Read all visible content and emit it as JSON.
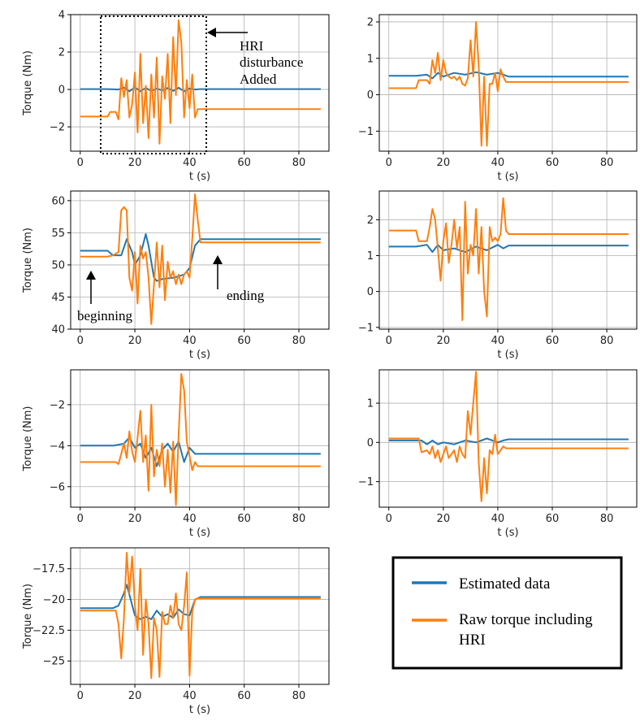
{
  "chart_data": [
    {
      "type": "line",
      "id": "p1",
      "xlabel": "t (s)",
      "ylabel": "Torque (Nm)",
      "xlim": [
        -3.5,
        91
      ],
      "ylim": [
        -3.3,
        4.0
      ],
      "xticks": [
        0,
        20,
        40,
        60,
        80
      ],
      "yticks": [
        -2,
        0,
        2,
        4
      ],
      "series": [
        {
          "name": "Estimated data",
          "color": "#1f77b4",
          "x": [
            0,
            5,
            10,
            14,
            16,
            18,
            20,
            22,
            24,
            26,
            28,
            30,
            32,
            34,
            36,
            38,
            40,
            42,
            44,
            88
          ],
          "y": [
            0.02,
            0.02,
            0.02,
            0.0,
            0.1,
            -0.1,
            0.12,
            -0.1,
            0.08,
            -0.08,
            0.05,
            -0.05,
            0.08,
            -0.08,
            0.1,
            -0.1,
            0.05,
            0.0,
            0.02,
            0.02
          ]
        },
        {
          "name": "Raw torque including HRI",
          "color": "#ff7f0e",
          "x": [
            0,
            10,
            11,
            13,
            14,
            15,
            16,
            17,
            18,
            19,
            20,
            21,
            22,
            23,
            24,
            25,
            26,
            27,
            28,
            29,
            30,
            31,
            32,
            33,
            34,
            35,
            36,
            37,
            38,
            39,
            40,
            41,
            42,
            43,
            44,
            88
          ],
          "y": [
            -1.45,
            -1.45,
            -1.2,
            -1.2,
            -1.6,
            0.6,
            -0.4,
            0.5,
            -1.5,
            -0.8,
            0.9,
            -2.3,
            1.9,
            -1.8,
            0.2,
            -2.6,
            0.8,
            -1.5,
            1.7,
            -2.9,
            0.7,
            -0.5,
            1.9,
            -1.8,
            2.8,
            -0.3,
            3.7,
            2.5,
            -1.5,
            0.5,
            -1.0,
            0.8,
            -1.5,
            -1.05,
            -1.05,
            -1.05
          ]
        }
      ]
    },
    {
      "type": "line",
      "id": "p2",
      "xlabel": "t (s)",
      "ylabel": "",
      "xlim": [
        -3.5,
        91
      ],
      "ylim": [
        -1.55,
        2.2
      ],
      "xticks": [
        0,
        20,
        40,
        60,
        80
      ],
      "yticks": [
        -1,
        0,
        1,
        2
      ],
      "series": [
        {
          "name": "Estimated data",
          "color": "#1f77b4",
          "x": [
            0,
            10,
            14,
            16,
            18,
            20,
            24,
            28,
            32,
            36,
            40,
            42,
            44,
            88
          ],
          "y": [
            0.52,
            0.52,
            0.55,
            0.45,
            0.6,
            0.5,
            0.6,
            0.55,
            0.62,
            0.55,
            0.6,
            0.55,
            0.5,
            0.5
          ]
        },
        {
          "name": "Raw torque including HRI",
          "color": "#ff7f0e",
          "x": [
            0,
            10,
            11,
            14,
            15,
            16,
            17,
            18,
            19,
            20,
            21,
            22,
            23,
            24,
            25,
            26,
            27,
            28,
            29,
            30,
            31,
            32,
            33,
            34,
            35,
            36,
            37,
            38,
            39,
            40,
            41,
            42,
            43,
            44,
            88
          ],
          "y": [
            0.18,
            0.18,
            0.4,
            0.4,
            0.3,
            0.95,
            0.6,
            1.15,
            0.4,
            0.95,
            0.6,
            0.5,
            0.45,
            0.5,
            0.4,
            0.5,
            0.3,
            0.25,
            0.45,
            1.5,
            0.5,
            2.0,
            0.8,
            -1.4,
            0.5,
            -1.4,
            0.3,
            0.3,
            0.6,
            0.1,
            0.7,
            0.5,
            0.35,
            0.35,
            0.35
          ]
        }
      ]
    },
    {
      "type": "line",
      "id": "p3",
      "xlabel": "t (s)",
      "ylabel": "Torque (Nm)",
      "xlim": [
        -3.5,
        91
      ],
      "ylim": [
        40,
        61.5
      ],
      "xticks": [
        0,
        20,
        40,
        60,
        80
      ],
      "yticks": [
        40,
        45,
        50,
        55,
        60
      ],
      "series": [
        {
          "name": "Estimated data",
          "color": "#1f77b4",
          "x": [
            0,
            10,
            12,
            15,
            17,
            19,
            20,
            22,
            24,
            25,
            27,
            28,
            30,
            34,
            38,
            40,
            42,
            44,
            88
          ],
          "y": [
            52.2,
            52.2,
            51.5,
            51.5,
            54.0,
            52.0,
            50.0,
            51.5,
            54.8,
            53.0,
            48.0,
            47.5,
            47.8,
            48.0,
            48.5,
            49.5,
            53.0,
            54.0,
            54.0
          ]
        },
        {
          "name": "Raw torque including HRI",
          "color": "#ff7f0e",
          "x": [
            0,
            10,
            12,
            14,
            15,
            16,
            17,
            18,
            19,
            20,
            21,
            22,
            23,
            24,
            25,
            26,
            27,
            28,
            29,
            30,
            31,
            32,
            33,
            34,
            35,
            36,
            37,
            38,
            39,
            40,
            41,
            42,
            43,
            44,
            88
          ],
          "y": [
            51.3,
            51.3,
            51.5,
            52.0,
            58.5,
            59.0,
            58.5,
            48.0,
            46.0,
            52.0,
            44.0,
            53.0,
            51.0,
            52.0,
            48.0,
            40.8,
            47.0,
            53.5,
            46.5,
            53.0,
            44.5,
            50.5,
            48.0,
            49.0,
            47.0,
            48.5,
            47.0,
            48.5,
            49.0,
            48.0,
            54.0,
            61.0,
            57.0,
            53.5,
            53.5
          ]
        }
      ]
    },
    {
      "type": "line",
      "id": "p4",
      "xlabel": "t (s)",
      "ylabel": "",
      "xlim": [
        -3.5,
        91
      ],
      "ylim": [
        -1.05,
        2.8
      ],
      "xticks": [
        0,
        20,
        40,
        60,
        80
      ],
      "yticks": [
        -1,
        0,
        1,
        2
      ],
      "series": [
        {
          "name": "Estimated data",
          "color": "#1f77b4",
          "x": [
            0,
            10,
            14,
            16,
            18,
            20,
            24,
            28,
            32,
            36,
            40,
            42,
            44,
            88
          ],
          "y": [
            1.25,
            1.25,
            1.3,
            1.1,
            1.3,
            1.15,
            1.2,
            1.1,
            1.25,
            1.15,
            1.3,
            1.2,
            1.28,
            1.28
          ]
        },
        {
          "name": "Raw torque including HRI",
          "color": "#ff7f0e",
          "x": [
            0,
            10,
            11,
            14,
            15,
            16,
            17,
            18,
            19,
            20,
            21,
            22,
            23,
            24,
            25,
            26,
            27,
            28,
            29,
            30,
            31,
            32,
            33,
            34,
            35,
            36,
            37,
            38,
            39,
            40,
            41,
            42,
            43,
            44,
            88
          ],
          "y": [
            1.7,
            1.7,
            1.4,
            1.4,
            1.8,
            2.3,
            2.0,
            1.2,
            0.3,
            1.4,
            1.9,
            0.8,
            1.3,
            2.0,
            1.2,
            1.8,
            -0.8,
            2.5,
            0.5,
            1.3,
            1.0,
            2.3,
            0.5,
            1.8,
            0.0,
            -0.7,
            1.8,
            1.4,
            1.5,
            1.4,
            1.6,
            2.6,
            1.7,
            1.6,
            1.6
          ]
        }
      ]
    },
    {
      "type": "line",
      "id": "p5",
      "xlabel": "t (s)",
      "ylabel": "Torque (Nm)",
      "xlim": [
        -3.5,
        91
      ],
      "ylim": [
        -7.0,
        -0.3
      ],
      "xticks": [
        0,
        20,
        40,
        60,
        80
      ],
      "yticks": [
        -6,
        -4,
        -2
      ],
      "series": [
        {
          "name": "Estimated data",
          "color": "#1f77b4",
          "x": [
            0,
            12,
            16,
            18,
            20,
            22,
            24,
            26,
            28,
            30,
            32,
            34,
            36,
            38,
            40,
            42,
            44,
            88
          ],
          "y": [
            -4.0,
            -4.0,
            -3.9,
            -3.6,
            -4.1,
            -3.9,
            -4.6,
            -4.1,
            -5.0,
            -4.2,
            -3.9,
            -4.3,
            -3.8,
            -4.8,
            -4.1,
            -4.4,
            -4.4,
            -4.4
          ]
        },
        {
          "name": "Raw torque including HRI",
          "color": "#ff7f0e",
          "x": [
            0,
            13,
            14,
            16,
            17,
            18,
            19,
            20,
            21,
            22,
            23,
            24,
            25,
            26,
            27,
            28,
            29,
            30,
            31,
            32,
            33,
            34,
            35,
            36,
            37,
            38,
            39,
            40,
            41,
            42,
            43,
            44,
            88
          ],
          "y": [
            -4.8,
            -4.8,
            -4.9,
            -3.9,
            -4.6,
            -3.3,
            -4.3,
            -4.8,
            -3.6,
            -2.3,
            -4.8,
            -3.5,
            -6.2,
            -2.0,
            -5.5,
            -4.2,
            -5.0,
            -3.9,
            -6.0,
            -4.2,
            -6.3,
            -3.8,
            -6.9,
            -3.5,
            -0.5,
            -1.3,
            -3.8,
            -4.5,
            -5.2,
            -4.8,
            -5.0,
            -5.0,
            -5.0
          ]
        }
      ]
    },
    {
      "type": "line",
      "id": "p6",
      "xlabel": "t (s)",
      "ylabel": "",
      "xlim": [
        -3.5,
        91
      ],
      "ylim": [
        -1.65,
        1.85
      ],
      "xticks": [
        0,
        20,
        40,
        60,
        80
      ],
      "yticks": [
        -1,
        0,
        1
      ],
      "series": [
        {
          "name": "Estimated data",
          "color": "#1f77b4",
          "x": [
            0,
            12,
            14,
            16,
            18,
            20,
            24,
            28,
            32,
            36,
            40,
            42,
            44,
            88
          ],
          "y": [
            0.05,
            0.05,
            -0.05,
            0.05,
            -0.05,
            0.0,
            -0.05,
            0.05,
            0.0,
            0.1,
            0.0,
            0.05,
            0.08,
            0.08
          ]
        },
        {
          "name": "Raw torque including HRI",
          "color": "#ff7f0e",
          "x": [
            0,
            11,
            12,
            14,
            15,
            16,
            17,
            18,
            19,
            20,
            21,
            22,
            23,
            24,
            25,
            26,
            27,
            28,
            29,
            30,
            31,
            32,
            33,
            34,
            35,
            36,
            37,
            38,
            39,
            40,
            41,
            42,
            43,
            44,
            88
          ],
          "y": [
            0.1,
            0.1,
            -0.25,
            -0.2,
            -0.3,
            -0.1,
            -0.4,
            -0.2,
            -0.5,
            -0.3,
            -0.1,
            -0.4,
            -0.3,
            -0.2,
            -0.5,
            -0.1,
            -0.3,
            -0.4,
            0.8,
            0.2,
            1.0,
            1.8,
            -0.5,
            -1.5,
            -0.4,
            -1.3,
            -0.2,
            -0.3,
            0.2,
            -0.3,
            -0.2,
            -0.1,
            -0.15,
            -0.15,
            -0.15
          ]
        }
      ]
    },
    {
      "type": "line",
      "id": "p7",
      "xlabel": "t (s)",
      "ylabel": "Torque (Nm)",
      "xlim": [
        -3.5,
        91
      ],
      "ylim": [
        -26.9,
        -15.8
      ],
      "xticks": [
        0,
        20,
        40,
        60,
        80
      ],
      "yticks": [
        -25.0,
        -22.5,
        -20.0,
        -17.5
      ],
      "series": [
        {
          "name": "Estimated data",
          "color": "#1f77b4",
          "x": [
            0,
            12,
            14,
            16,
            17,
            18,
            20,
            22,
            24,
            26,
            28,
            30,
            32,
            34,
            36,
            38,
            40,
            42,
            44,
            88
          ],
          "y": [
            -20.7,
            -20.7,
            -20.5,
            -19.5,
            -18.8,
            -19.6,
            -21.3,
            -21.6,
            -21.4,
            -21.6,
            -20.9,
            -21.4,
            -21.2,
            -21.5,
            -20.8,
            -21.2,
            -21.3,
            -20.0,
            -19.8,
            -19.8
          ]
        },
        {
          "name": "Raw torque including HRI",
          "color": "#ff7f0e",
          "x": [
            0,
            13,
            14,
            15,
            16,
            17,
            18,
            19,
            20,
            21,
            22,
            23,
            24,
            25,
            26,
            27,
            28,
            29,
            30,
            31,
            32,
            33,
            34,
            35,
            36,
            37,
            38,
            39,
            40,
            41,
            42,
            43,
            44,
            88
          ],
          "y": [
            -20.9,
            -20.9,
            -22.0,
            -24.8,
            -21.5,
            -16.2,
            -19.5,
            -16.5,
            -20.5,
            -22.5,
            -17.5,
            -24.5,
            -20.0,
            -22.0,
            -26.4,
            -21.5,
            -22.5,
            -26.3,
            -21.0,
            -22.0,
            -22.0,
            -20.5,
            -21.5,
            -19.5,
            -22.0,
            -22.5,
            -20.5,
            -17.8,
            -26.2,
            -21.0,
            -20.0,
            -19.9,
            -19.9,
            -19.9
          ]
        }
      ]
    }
  ],
  "annotations": {
    "hri_line1": "HRI",
    "hri_line2": "disturbance",
    "hri_line3": "Added",
    "beginning": "beginning",
    "ending": "ending"
  },
  "legend": {
    "estimated": "Estimated data",
    "raw_line1": "Raw torque including",
    "raw_line2": "HRI"
  }
}
